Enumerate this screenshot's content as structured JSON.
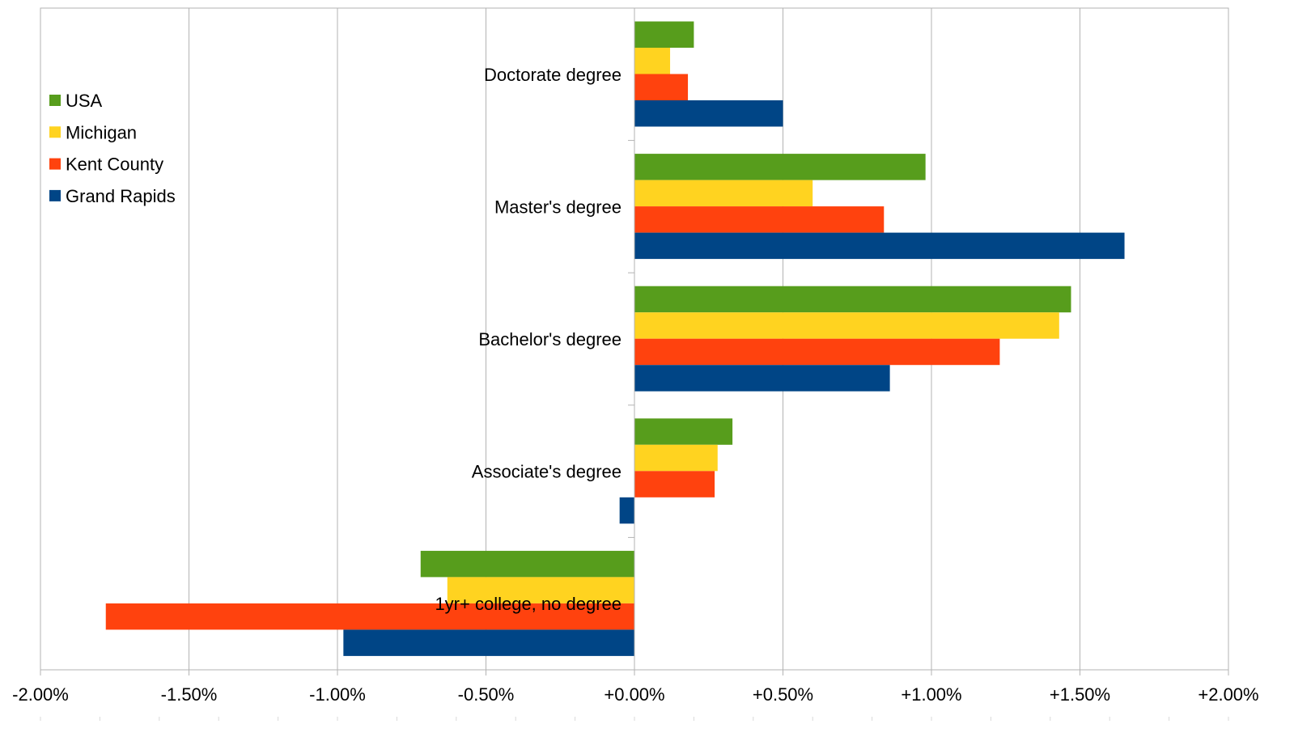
{
  "chart_data": {
    "type": "bar",
    "orientation": "horizontal",
    "title": "",
    "xlabel": "",
    "ylabel": "",
    "xlim": [
      -2.0,
      2.0
    ],
    "x_ticks": [
      -2.0,
      -1.5,
      -1.0,
      -0.5,
      0.0,
      0.5,
      1.0,
      1.5,
      2.0
    ],
    "x_tick_labels": [
      "-2.00%",
      "-1.50%",
      "-1.00%",
      "-0.50%",
      "+0.00%",
      "+0.50%",
      "+1.00%",
      "+1.50%",
      "+2.00%"
    ],
    "grid": "vertical",
    "legend_position": "top-left",
    "categories": [
      "Doctorate degree",
      "Master's degree",
      "Bachelor's degree",
      "Associate's degree",
      "1yr+ college, no degree"
    ],
    "series": [
      {
        "name": "USA",
        "color": "#579d1c",
        "values": [
          0.2,
          0.98,
          1.47,
          0.33,
          -0.72
        ]
      },
      {
        "name": "Michigan",
        "color": "#ffd320",
        "values": [
          0.12,
          0.6,
          1.43,
          0.28,
          -0.63
        ]
      },
      {
        "name": "Kent County",
        "color": "#ff420e",
        "values": [
          0.18,
          0.84,
          1.23,
          0.27,
          -1.78
        ]
      },
      {
        "name": "Grand Rapids",
        "color": "#004586",
        "values": [
          0.5,
          1.65,
          0.86,
          -0.05,
          -0.98
        ]
      }
    ]
  }
}
